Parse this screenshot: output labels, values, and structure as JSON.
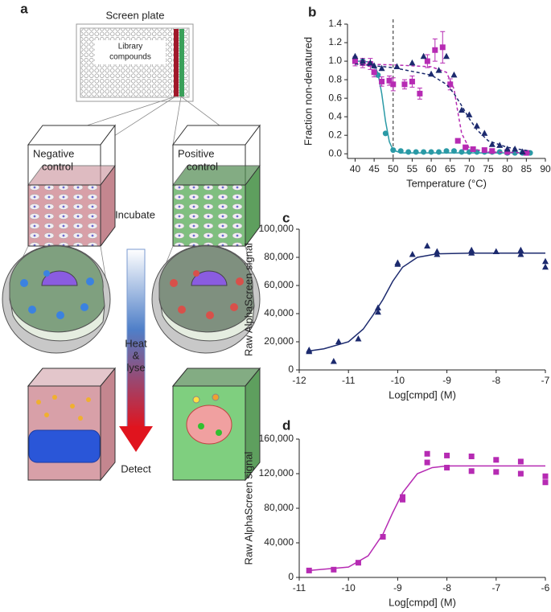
{
  "diagram": {
    "label": "a",
    "plate_title": "Screen plate",
    "library": [
      "Library",
      "compounds"
    ],
    "negative": [
      "Negative",
      "control"
    ],
    "positive": [
      "Positive",
      "control"
    ],
    "incubate": "Incubate",
    "heat": [
      "Heat",
      "&",
      "lyse"
    ],
    "detect": "Detect"
  },
  "chart_data": [
    {
      "type": "scatter",
      "label": "b",
      "x_label": "Temperature (°C)",
      "y_label": "Fraction non-denatured",
      "xlim": [
        38,
        90
      ],
      "xticks": [
        40,
        45,
        50,
        55,
        60,
        65,
        70,
        75,
        80,
        85,
        90
      ],
      "ylim": [
        -0.05,
        1.4
      ],
      "yticks": [
        {
          "value": 0,
          "label": "0.0"
        },
        0.2,
        0.4,
        0.6,
        0.8,
        {
          "value": 1,
          "label": "1.0"
        },
        1.2,
        1.4
      ],
      "vline": 50,
      "series": [
        {
          "color": "#2a9aa6",
          "marker": "circle",
          "x": [
            40,
            42,
            44,
            46,
            48,
            50,
            52,
            54,
            56,
            58,
            60,
            62,
            64,
            66,
            68,
            70,
            72,
            74,
            76,
            78,
            80,
            82,
            84,
            86
          ],
          "values": [
            1.0,
            1.0,
            0.97,
            0.85,
            0.22,
            0.04,
            0.03,
            0.02,
            0.02,
            0.02,
            0.02,
            0.02,
            0.03,
            0.03,
            0.02,
            0.02,
            0.02,
            0.02,
            0.02,
            0.02,
            0.01,
            0.01,
            0.01,
            0.01
          ]
        },
        {
          "color": "#2a9aa6",
          "line": "solid",
          "x": [
            40,
            42,
            44,
            45,
            46,
            47,
            48,
            49,
            50,
            52,
            60,
            70,
            86
          ],
          "values": [
            1.0,
            1.0,
            0.99,
            0.96,
            0.87,
            0.65,
            0.35,
            0.13,
            0.04,
            0.01,
            0.01,
            0.01,
            0.01
          ]
        },
        {
          "color": "#b62bb3",
          "marker": "square",
          "x": [
            40,
            42,
            44,
            45,
            47,
            49,
            50,
            53,
            55,
            57,
            59,
            61,
            63,
            65,
            67,
            69,
            71,
            74,
            76,
            80,
            85
          ],
          "values": [
            1.0,
            0.98,
            0.97,
            0.88,
            0.78,
            0.79,
            0.75,
            0.75,
            0.78,
            0.65,
            1.0,
            1.12,
            1.15,
            0.75,
            0.14,
            0.07,
            0.05,
            0.04,
            0.03,
            0.02,
            0.01
          ],
          "errors": [
            0.05,
            0.05,
            0.06,
            0.05,
            0.05,
            0.05,
            0.07,
            0.05,
            0.06,
            0.06,
            0.07,
            0.12,
            0.17,
            0.06,
            0.02,
            0.02,
            0.02,
            0.01,
            0.01,
            0.01,
            0.01
          ]
        },
        {
          "color": "#b62bb3",
          "line": "dashed",
          "x": [
            40,
            50,
            60,
            64,
            66,
            67,
            68,
            70,
            75,
            86
          ],
          "values": [
            0.97,
            0.96,
            0.94,
            0.88,
            0.7,
            0.45,
            0.22,
            0.06,
            0.02,
            0.01
          ]
        },
        {
          "color": "#1c2a6e",
          "marker": "triangle",
          "x": [
            40,
            42,
            44,
            45,
            47,
            51,
            55,
            58,
            60,
            62,
            64,
            66,
            68,
            70,
            72,
            74,
            76,
            78,
            80,
            82,
            84
          ],
          "values": [
            1.05,
            1.0,
            0.98,
            0.95,
            0.92,
            0.94,
            0.98,
            1.05,
            0.86,
            0.9,
            1.05,
            0.85,
            0.47,
            0.42,
            0.3,
            0.22,
            0.1,
            0.09,
            0.05,
            0.05,
            0.02
          ]
        },
        {
          "color": "#1c2a6e",
          "line": "dashed",
          "x": [
            40,
            50,
            60,
            64,
            66,
            68,
            70,
            72,
            75,
            80,
            86
          ],
          "values": [
            0.97,
            0.93,
            0.85,
            0.75,
            0.65,
            0.52,
            0.38,
            0.26,
            0.14,
            0.07,
            0.03
          ]
        }
      ]
    },
    {
      "type": "scatter",
      "label": "c",
      "x_label": "Log[cmpd] (M)",
      "y_label": "Raw AlphaScreen signal",
      "xlim": [
        -12,
        -7
      ],
      "xticks": [
        -12,
        -11,
        -10,
        -9,
        -8,
        -7
      ],
      "ylim": [
        0,
        100000
      ],
      "yticks": [
        0,
        {
          "value": 20000,
          "label": "20,000"
        },
        {
          "value": 40000,
          "label": "40,000"
        },
        {
          "value": 60000,
          "label": "60,000"
        },
        {
          "value": 80000,
          "label": "80,000"
        },
        {
          "value": 100000,
          "label": "100,000"
        }
      ],
      "series": [
        {
          "color": "#1c2a6e",
          "marker": "triangle",
          "x": [
            -11.8,
            -11.8,
            -11.3,
            -11.2,
            -10.8,
            -10.4,
            -10.4,
            -10,
            -10,
            -9.7,
            -9.4,
            -9.2,
            -9.2,
            -8.5,
            -8.5,
            -8,
            -7.5,
            -7.5,
            -7,
            -7
          ],
          "values": [
            14000,
            13000,
            6000,
            20000,
            22000,
            41000,
            44000,
            75000,
            76000,
            82000,
            88000,
            82000,
            84000,
            85000,
            83000,
            84000,
            85000,
            82000,
            77000,
            73000
          ]
        },
        {
          "color": "#1c2a6e",
          "line": "solid",
          "x": [
            -11.8,
            -11.5,
            -11,
            -10.7,
            -10.5,
            -10.3,
            -10.1,
            -9.9,
            -9.6,
            -9.2,
            -8.5,
            -7
          ],
          "values": [
            13500,
            15000,
            20000,
            29000,
            39000,
            50000,
            63000,
            73000,
            80000,
            82500,
            83000,
            83000
          ]
        }
      ]
    },
    {
      "type": "scatter",
      "label": "d",
      "x_label": "Log[cmpd] (M)",
      "y_label": "Raw AlphaScreen signal",
      "xlim": [
        -11,
        -6
      ],
      "xticks": [
        -11,
        -10,
        -9,
        -8,
        -7,
        -6
      ],
      "ylim": [
        0,
        160000
      ],
      "yticks": [
        0,
        {
          "value": 40000,
          "label": "40,000"
        },
        {
          "value": 80000,
          "label": "80,000"
        },
        {
          "value": 120000,
          "label": "120,000"
        },
        {
          "value": 160000,
          "label": "160,000"
        }
      ],
      "series": [
        {
          "color": "#b62bb3",
          "marker": "square",
          "x": [
            -10.8,
            -10.3,
            -9.8,
            -9.3,
            -8.9,
            -8.9,
            -8.4,
            -8.4,
            -8,
            -8,
            -7.5,
            -7.5,
            -7,
            -7,
            -6.5,
            -6.5,
            -6,
            -6
          ],
          "values": [
            8000,
            9000,
            17000,
            47000,
            90000,
            93000,
            143000,
            133000,
            127000,
            141000,
            140000,
            123000,
            122000,
            136000,
            134000,
            120000,
            117000,
            110000
          ]
        },
        {
          "color": "#b62bb3",
          "line": "solid",
          "x": [
            -10.8,
            -10,
            -9.6,
            -9.3,
            -9.1,
            -8.9,
            -8.6,
            -8.3,
            -8,
            -6
          ],
          "values": [
            8000,
            12000,
            25000,
            50000,
            75000,
            98000,
            120000,
            127000,
            129000,
            129000
          ]
        }
      ]
    }
  ]
}
